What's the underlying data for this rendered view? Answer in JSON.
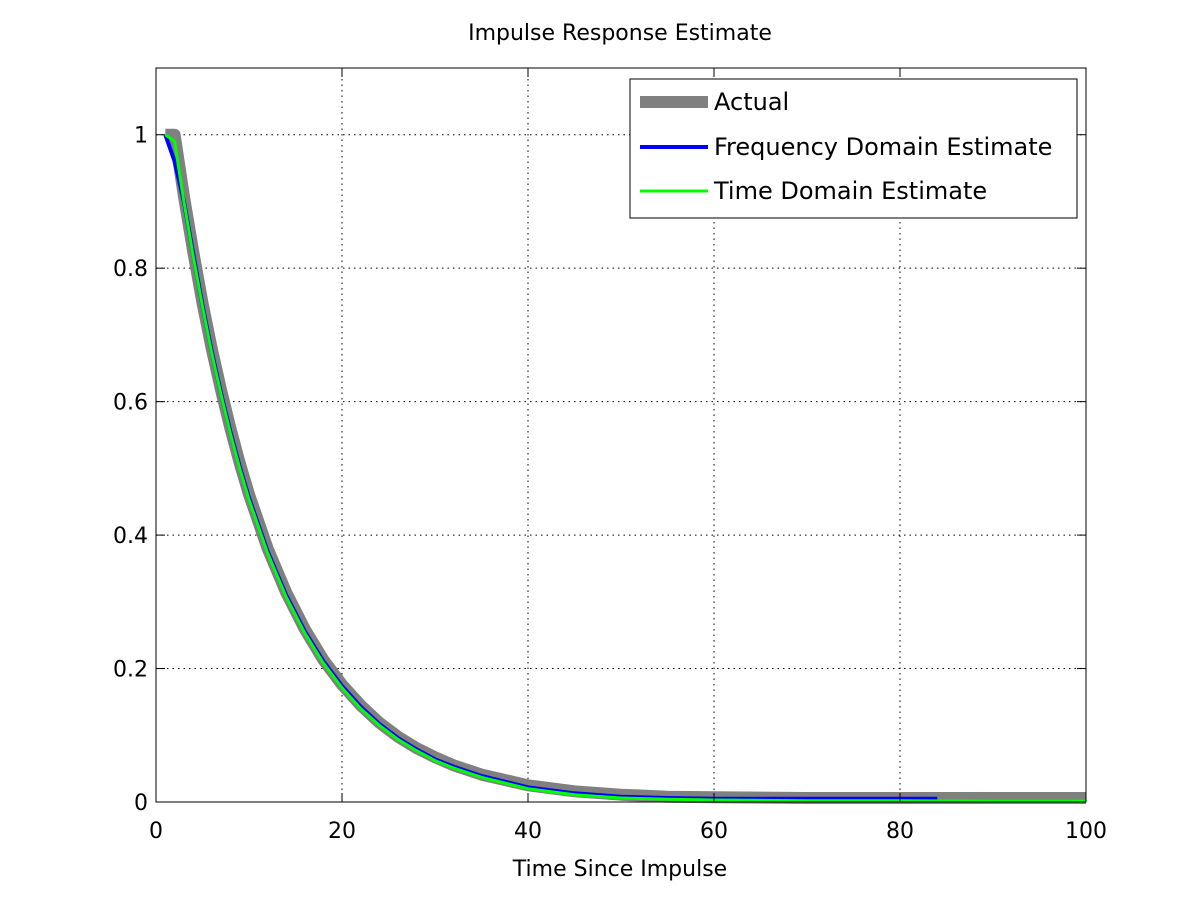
{
  "chart_data": {
    "type": "line",
    "title": "Impulse Response Estimate",
    "xlabel": "Time Since Impulse",
    "ylabel": "",
    "xlim": [
      0,
      100
    ],
    "ylim": [
      0,
      1.1
    ],
    "xticks": [
      0,
      20,
      40,
      60,
      80,
      100
    ],
    "yticks": [
      0,
      0.2,
      0.4,
      0.6,
      0.8,
      1
    ],
    "xtick_labels": [
      "0",
      "20",
      "40",
      "60",
      "80",
      "100"
    ],
    "ytick_labels": [
      "0",
      "0.2",
      "0.4",
      "0.6",
      "0.8",
      "1"
    ],
    "grid": true,
    "legend_position": "top-right",
    "series": [
      {
        "name": "Actual",
        "color": "#808080",
        "x": [
          1,
          2,
          3,
          4,
          5,
          6,
          7,
          8,
          9,
          10,
          12,
          14,
          16,
          18,
          20,
          22,
          24,
          26,
          28,
          30,
          32,
          35,
          40,
          45,
          50,
          55,
          60,
          70,
          80,
          90,
          100
        ],
        "y": [
          1,
          1,
          0.908,
          0.825,
          0.748,
          0.679,
          0.617,
          0.56,
          0.508,
          0.461,
          0.38,
          0.314,
          0.259,
          0.213,
          0.176,
          0.145,
          0.119,
          0.098,
          0.081,
          0.067,
          0.055,
          0.041,
          0.025,
          0.016,
          0.011,
          0.008,
          0.007,
          0.006,
          0.006,
          0.006,
          0.006
        ]
      },
      {
        "name": "Frequency Domain Estimate",
        "color": "#0000ff",
        "x": [
          1,
          2,
          3,
          4,
          5,
          6,
          7,
          8,
          9,
          10,
          12,
          14,
          16,
          18,
          20,
          22,
          24,
          26,
          28,
          30,
          32,
          35,
          40,
          45,
          50,
          55,
          60,
          70,
          80,
          84
        ],
        "y": [
          1,
          0.96,
          0.9,
          0.822,
          0.744,
          0.675,
          0.612,
          0.555,
          0.503,
          0.456,
          0.376,
          0.31,
          0.256,
          0.211,
          0.174,
          0.143,
          0.117,
          0.096,
          0.079,
          0.064,
          0.053,
          0.039,
          0.022,
          0.013,
          0.008,
          0.006,
          0.005,
          0.005,
          0.005,
          0.005
        ]
      },
      {
        "name": "Time Domain Estimate",
        "color": "#00ff00",
        "x": [
          1,
          2,
          3,
          4,
          5,
          6,
          7,
          8,
          9,
          10,
          12,
          14,
          16,
          18,
          20,
          22,
          24,
          26,
          28,
          30,
          32,
          35,
          40,
          45,
          50,
          55,
          60,
          70,
          80,
          90,
          100
        ],
        "y": [
          1,
          0.99,
          0.9,
          0.818,
          0.742,
          0.672,
          0.61,
          0.552,
          0.5,
          0.453,
          0.373,
          0.307,
          0.253,
          0.208,
          0.171,
          0.14,
          0.115,
          0.094,
          0.077,
          0.062,
          0.051,
          0.037,
          0.02,
          0.011,
          0.006,
          0.004,
          0.003,
          0.002,
          0.002,
          0.001,
          0.001
        ]
      }
    ]
  }
}
